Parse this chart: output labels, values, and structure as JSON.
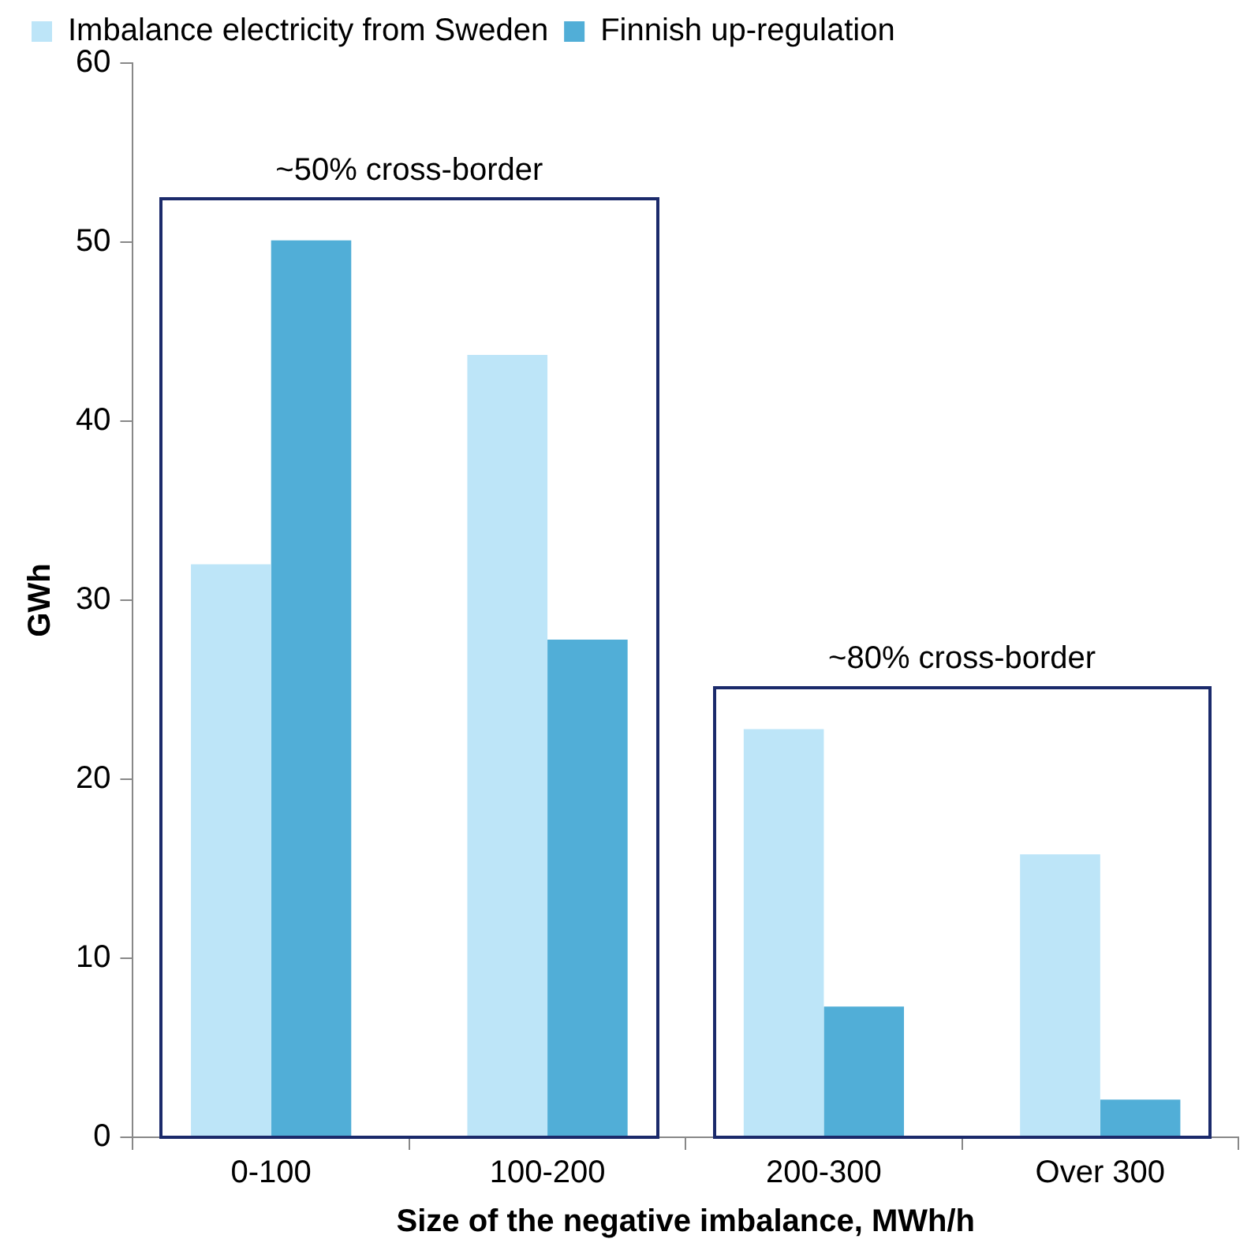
{
  "chart_data": {
    "type": "bar",
    "xlabel": "Size of the negative imbalance, MWh/h",
    "ylabel": "GWh",
    "categories": [
      "0-100",
      "100-200",
      "200-300",
      "Over 300"
    ],
    "series": [
      {
        "name": "Imbalance electricity from Sweden",
        "color": "#bde5f8",
        "values": [
          32.0,
          43.7,
          22.8,
          15.8
        ]
      },
      {
        "name": "Finnish up-regulation",
        "color": "#51aed7",
        "values": [
          50.1,
          27.8,
          7.3,
          2.1
        ]
      }
    ],
    "ylim": [
      0,
      60
    ],
    "yticks": [
      0,
      10,
      20,
      30,
      40,
      50,
      60
    ],
    "grid": false,
    "legend": "top left",
    "annotations": [
      "~50% cross-border",
      "~80% cross-border"
    ]
  }
}
